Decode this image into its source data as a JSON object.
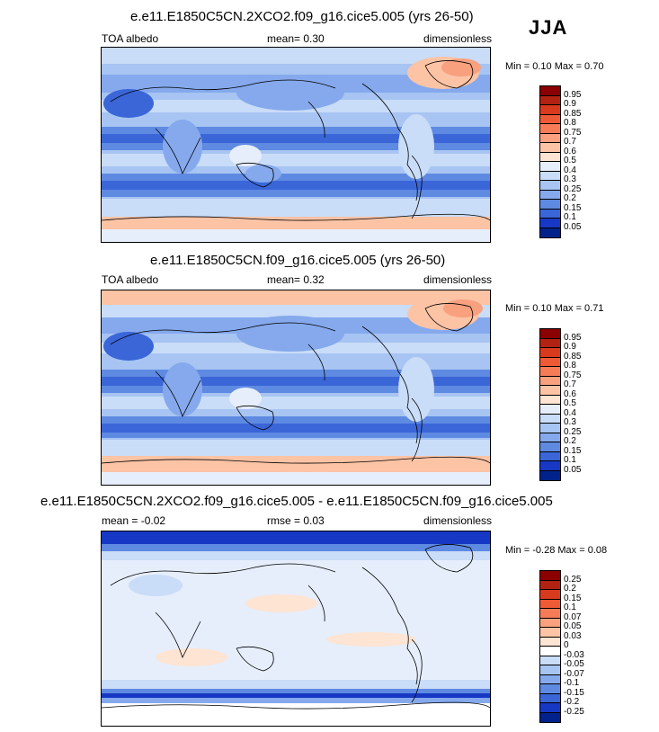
{
  "season": "JJA",
  "panels": [
    {
      "title": "e.e11.E1850C5CN.2XCO2.f09_g16.cice5.005 (yrs 26-50)",
      "left": "TOA albedo",
      "middle": "mean=   0.30",
      "right": "dimensionless",
      "minmax": "Min =   0.10 Max =   0.70",
      "levels": [
        "0.95",
        "0.9",
        "0.85",
        "0.8",
        "0.75",
        "0.7",
        "0.6",
        "0.5",
        "0.4",
        "0.3",
        "0.25",
        "0.2",
        "0.15",
        "0.1",
        "0.05"
      ],
      "colors": [
        "#8b0000",
        "#b22212",
        "#d83a1d",
        "#ee5a36",
        "#f67c58",
        "#f9a07f",
        "#fcc3a5",
        "#fde4d3",
        "#e6eefb",
        "#c9dcf8",
        "#a7c4f2",
        "#85a9ec",
        "#5f8ae2",
        "#3a66d8",
        "#1738c4",
        "#00228a"
      ]
    },
    {
      "title": "e.e11.E1850C5CN.f09_g16.cice5.005 (yrs 26-50)",
      "left": "TOA albedo",
      "middle": "mean=   0.32",
      "right": "dimensionless",
      "minmax": "Min =   0.10 Max =   0.71",
      "levels": [
        "0.95",
        "0.9",
        "0.85",
        "0.8",
        "0.75",
        "0.7",
        "0.6",
        "0.5",
        "0.4",
        "0.3",
        "0.25",
        "0.2",
        "0.15",
        "0.1",
        "0.05"
      ],
      "colors": [
        "#8b0000",
        "#b22212",
        "#d83a1d",
        "#ee5a36",
        "#f67c58",
        "#f9a07f",
        "#fcc3a5",
        "#fde4d3",
        "#e6eefb",
        "#c9dcf8",
        "#a7c4f2",
        "#85a9ec",
        "#5f8ae2",
        "#3a66d8",
        "#1738c4",
        "#00228a"
      ]
    },
    {
      "title": "e.e11.E1850C5CN.2XCO2.f09_g16.cice5.005 - e.e11.E1850C5CN.f09_g16.cice5.005",
      "left": "mean = -0.02",
      "middle": "rmse =  0.03",
      "right": "dimensionless",
      "minmax": "Min =  -0.28 Max =   0.08",
      "levels": [
        "0.25",
        "0.2",
        "0.15",
        "0.1",
        "0.07",
        "0.05",
        "0.03",
        "0",
        "-0.03",
        "-0.05",
        "-0.07",
        "-0.1",
        "-0.15",
        "-0.2",
        "-0.25"
      ],
      "colors": [
        "#8b0000",
        "#b22212",
        "#d83a1d",
        "#ee5a36",
        "#f67c58",
        "#f9a07f",
        "#fcc3a5",
        "#fde4d3",
        "#ffffff",
        "#c9dcf8",
        "#a7c4f2",
        "#85a9ec",
        "#5f8ae2",
        "#3a66d8",
        "#1738c4",
        "#00228a"
      ]
    }
  ]
}
